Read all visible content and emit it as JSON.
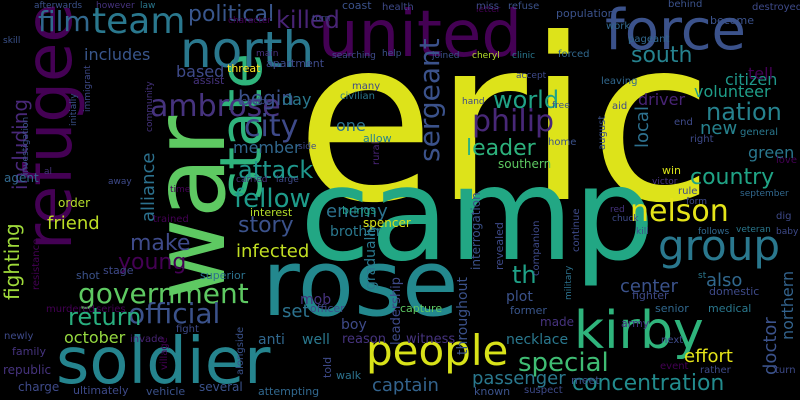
{
  "words": [
    {
      "text": "eric",
      "color": "#dde31a"
    },
    {
      "text": "camp",
      "color": "#22a784"
    },
    {
      "text": "war",
      "color": "#5ec962"
    },
    {
      "text": "rose",
      "color": "#23888e"
    },
    {
      "text": "united",
      "color": "#440154"
    },
    {
      "text": "force",
      "color": "#3b528b"
    },
    {
      "text": "refugee",
      "color": "#440154"
    },
    {
      "text": "soldier",
      "color": "#25848e"
    },
    {
      "text": "state",
      "color": "#2fb47c"
    },
    {
      "text": "north",
      "color": "#2a788e"
    },
    {
      "text": "kirby",
      "color": "#2fb47c"
    },
    {
      "text": "people",
      "color": "#d8e219"
    },
    {
      "text": "group",
      "color": "#2a788e"
    },
    {
      "text": "nelson",
      "color": "#e5e419"
    },
    {
      "text": "team",
      "color": "#2a788e"
    },
    {
      "text": "government",
      "color": "#5ec962"
    },
    {
      "text": "official",
      "color": "#3b528b"
    },
    {
      "text": "ambrose",
      "color": "#46337e"
    },
    {
      "text": "philip",
      "color": "#482878"
    },
    {
      "text": "city",
      "color": "#3e4a89"
    },
    {
      "text": "attack",
      "color": "#1f968b"
    },
    {
      "text": "fellow",
      "color": "#1e9b8a"
    },
    {
      "text": "world",
      "color": "#20a386"
    },
    {
      "text": "country",
      "color": "#20a486"
    },
    {
      "text": "special",
      "color": "#3fbc73"
    },
    {
      "text": "concentration",
      "color": "#228b8d"
    },
    {
      "text": "sergeant",
      "color": "#3b528b"
    },
    {
      "text": "film",
      "color": "#31688e"
    },
    {
      "text": "political",
      "color": "#39568c"
    },
    {
      "text": "killed",
      "color": "#482475"
    },
    {
      "text": "south",
      "color": "#26828e"
    },
    {
      "text": "nation",
      "color": "#26828e"
    },
    {
      "text": "leader",
      "color": "#2db27d"
    },
    {
      "text": "story",
      "color": "#3b528b"
    },
    {
      "text": "make",
      "color": "#3e4a89"
    },
    {
      "text": "young",
      "color": "#440154"
    },
    {
      "text": "return",
      "color": "#29af7f"
    },
    {
      "text": "begin",
      "color": "#3b528b"
    },
    {
      "text": "th",
      "color": "#1fa187"
    },
    {
      "text": "fighting",
      "color": "#9fda3a"
    },
    {
      "text": "including",
      "color": "#482878"
    },
    {
      "text": "friend",
      "color": "#bddf26"
    },
    {
      "text": "infected",
      "color": "#c2df23"
    },
    {
      "text": "enemy",
      "color": "#2c728e"
    },
    {
      "text": "alliance",
      "color": "#2c718e"
    },
    {
      "text": "center",
      "color": "#3b528b"
    },
    {
      "text": "doctor",
      "color": "#3b528b"
    },
    {
      "text": "also",
      "color": "#31688e"
    },
    {
      "text": "passenger",
      "color": "#2a788e"
    },
    {
      "text": "captain",
      "color": "#33638d"
    },
    {
      "text": "effort",
      "color": "#e5e419"
    },
    {
      "text": "october",
      "color": "#95d840"
    },
    {
      "text": "set",
      "color": "#2c728e"
    },
    {
      "text": "new",
      "color": "#26828e"
    },
    {
      "text": "local",
      "color": "#2d708e"
    },
    {
      "text": "driver",
      "color": "#482475"
    },
    {
      "text": "citizen",
      "color": "#1f978b"
    },
    {
      "text": "volunteer",
      "color": "#1f9e89"
    },
    {
      "text": "tell",
      "color": "#440154"
    },
    {
      "text": "green",
      "color": "#2a778e"
    },
    {
      "text": "includes",
      "color": "#39568c"
    },
    {
      "text": "based",
      "color": "#3e4a89"
    },
    {
      "text": "member",
      "color": "#31688e"
    },
    {
      "text": "day",
      "color": "#2a788e"
    },
    {
      "text": "one",
      "color": "#2c728e"
    },
    {
      "text": "northern",
      "color": "#33638d"
    },
    {
      "text": "gradually",
      "color": "#2a788e"
    },
    {
      "text": "throughout",
      "color": "#3b528b"
    },
    {
      "text": "leadership",
      "color": "#3e4a89"
    },
    {
      "text": "brother",
      "color": "#2a788e"
    },
    {
      "text": "boy",
      "color": "#3e4a89"
    },
    {
      "text": "mob",
      "color": "#46337e"
    },
    {
      "text": "anti",
      "color": "#31688e"
    },
    {
      "text": "well",
      "color": "#2a788e"
    },
    {
      "text": "reason",
      "color": "#46337e"
    },
    {
      "text": "witness",
      "color": "#46337e"
    },
    {
      "text": "told",
      "color": "#3e4a89"
    },
    {
      "text": "walk",
      "color": "#2c728e"
    },
    {
      "text": "plot",
      "color": "#3b528b"
    },
    {
      "text": "made",
      "color": "#46337e"
    },
    {
      "text": "necklace",
      "color": "#2a788e"
    },
    {
      "text": "former",
      "color": "#39568c"
    },
    {
      "text": "army",
      "color": "#46337e"
    },
    {
      "text": "fighter",
      "color": "#3e4a89"
    },
    {
      "text": "interrogation",
      "color": "#3b528b"
    },
    {
      "text": "revealed",
      "color": "#3e4a89"
    },
    {
      "text": "spencer",
      "color": "#d8e219"
    },
    {
      "text": "brings",
      "color": "#1fa187"
    },
    {
      "text": "interest",
      "color": "#b5de2b"
    },
    {
      "text": "assist",
      "color": "#46337e"
    },
    {
      "text": "threat",
      "color": "#fde725"
    },
    {
      "text": "apartment",
      "color": "#3e4a89"
    },
    {
      "text": "officer",
      "color": "#3e4a89"
    },
    {
      "text": "superior",
      "color": "#2c728e"
    },
    {
      "text": "stage",
      "color": "#3e4a89"
    },
    {
      "text": "shot",
      "color": "#3b528b"
    },
    {
      "text": "invade",
      "color": "#482475"
    },
    {
      "text": "village",
      "color": "#440154"
    },
    {
      "text": "fight",
      "color": "#3e4a89"
    },
    {
      "text": "trained",
      "color": "#440154"
    },
    {
      "text": "order",
      "color": "#b5de2b"
    },
    {
      "text": "agent",
      "color": "#31688e"
    },
    {
      "text": "resistance",
      "color": "#440154"
    },
    {
      "text": "murdered",
      "color": "#440154"
    },
    {
      "text": "series",
      "color": "#440154"
    },
    {
      "text": "newly",
      "color": "#3e4a89"
    },
    {
      "text": "family",
      "color": "#46337e"
    },
    {
      "text": "republic",
      "color": "#46337e"
    },
    {
      "text": "charge",
      "color": "#3e4a89"
    },
    {
      "text": "ultimately",
      "color": "#3e4a89"
    },
    {
      "text": "vehicle",
      "color": "#3b528b"
    },
    {
      "text": "several",
      "color": "#3b528b"
    },
    {
      "text": "attempting",
      "color": "#31688e"
    },
    {
      "text": "alongside",
      "color": "#3b528b"
    },
    {
      "text": "capture",
      "color": "#5ec962"
    },
    {
      "text": "known",
      "color": "#3b528b"
    },
    {
      "text": "suspect",
      "color": "#3e4a89"
    },
    {
      "text": "meet",
      "color": "#3b528b"
    },
    {
      "text": "senior",
      "color": "#31688e"
    },
    {
      "text": "medical",
      "color": "#2a788e"
    },
    {
      "text": "domestic",
      "color": "#3e4a89"
    },
    {
      "text": "next",
      "color": "#3e4a89"
    },
    {
      "text": "event",
      "color": "#440154"
    },
    {
      "text": "rather",
      "color": "#3e4a89"
    },
    {
      "text": "turn",
      "color": "#3e4a89"
    },
    {
      "text": "letter",
      "color": "#440154"
    },
    {
      "text": "military",
      "color": "#2c728e"
    },
    {
      "text": "companion",
      "color": "#3e4a89"
    },
    {
      "text": "continue",
      "color": "#3e4a89"
    },
    {
      "text": "rural",
      "color": "#482475"
    },
    {
      "text": "southern",
      "color": "#5ec962"
    },
    {
      "text": "home",
      "color": "#3b528b"
    },
    {
      "text": "allow",
      "color": "#26828e"
    },
    {
      "text": "civilian",
      "color": "#2a788e"
    },
    {
      "text": "many",
      "color": "#3e4a89"
    },
    {
      "text": "tension",
      "color": "#3e4a89"
    },
    {
      "text": "main",
      "color": "#46337e"
    },
    {
      "text": "searching",
      "color": "#3e4a89"
    },
    {
      "text": "help",
      "color": "#3b528b"
    },
    {
      "text": "joined",
      "color": "#3b528b"
    },
    {
      "text": "cheryl",
      "color": "#b5de2b"
    },
    {
      "text": "clinic",
      "color": "#2a788e"
    },
    {
      "text": "forced",
      "color": "#31688e"
    },
    {
      "text": "accept",
      "color": "#3e4a89"
    },
    {
      "text": "free",
      "color": "#3b528b"
    },
    {
      "text": "leaving",
      "color": "#31688e"
    },
    {
      "text": "population",
      "color": "#3b528b"
    },
    {
      "text": "work",
      "color": "#31688e"
    },
    {
      "text": "pageant",
      "color": "#31688e"
    },
    {
      "text": "become",
      "color": "#3b528b"
    },
    {
      "text": "destroyed",
      "color": "#3e4a89"
    },
    {
      "text": "behind",
      "color": "#3b528b"
    },
    {
      "text": "coast",
      "color": "#3b528b"
    },
    {
      "text": "health",
      "color": "#3e4a89"
    },
    {
      "text": "miss",
      "color": "#3e4a89"
    },
    {
      "text": "refuse",
      "color": "#3b528b"
    },
    {
      "text": "torn",
      "color": "#3e4a89"
    },
    {
      "text": "character",
      "color": "#440154"
    },
    {
      "text": "however",
      "color": "#46337e"
    },
    {
      "text": "law",
      "color": "#2a788e"
    },
    {
      "text": "afterwards",
      "color": "#3b528b"
    },
    {
      "text": "skill",
      "color": "#3b528b"
    },
    {
      "text": "immigrant",
      "color": "#3e4a89"
    },
    {
      "text": "initially",
      "color": "#3b528b"
    },
    {
      "text": "community",
      "color": "#46337e"
    },
    {
      "text": "investigation",
      "color": "#3b528b"
    },
    {
      "text": "al",
      "color": "#46337e"
    },
    {
      "text": "away",
      "color": "#3e4a89"
    },
    {
      "text": "time",
      "color": "#440154"
    },
    {
      "text": "carried",
      "color": "#46337e"
    },
    {
      "text": "large",
      "color": "#3e4a89"
    },
    {
      "text": "side",
      "color": "#3e4a89"
    },
    {
      "text": "hand",
      "color": "#3e4a89"
    },
    {
      "text": "aid",
      "color": "#3e4a89"
    },
    {
      "text": "august",
      "color": "#3b528b"
    },
    {
      "text": "end",
      "color": "#3e4a89"
    },
    {
      "text": "right",
      "color": "#3e4a89"
    },
    {
      "text": "general",
      "color": "#2a788e"
    },
    {
      "text": "love",
      "color": "#440154"
    },
    {
      "text": "win",
      "color": "#d8e219"
    },
    {
      "text": "victor",
      "color": "#46337e"
    },
    {
      "text": "rule",
      "color": "#3e4a89"
    },
    {
      "text": "chuck",
      "color": "#3e4a89"
    },
    {
      "text": "september",
      "color": "#31688e"
    },
    {
      "text": "form",
      "color": "#3e4a89"
    },
    {
      "text": "follows",
      "color": "#31688e"
    },
    {
      "text": "veteran",
      "color": "#2a788e"
    },
    {
      "text": "dig",
      "color": "#3e4a89"
    },
    {
      "text": "baby",
      "color": "#3e4a89"
    },
    {
      "text": "red",
      "color": "#46337e"
    },
    {
      "text": "kill",
      "color": "#3e4a89"
    },
    {
      "text": "st",
      "color": "#2a788e"
    }
  ]
}
